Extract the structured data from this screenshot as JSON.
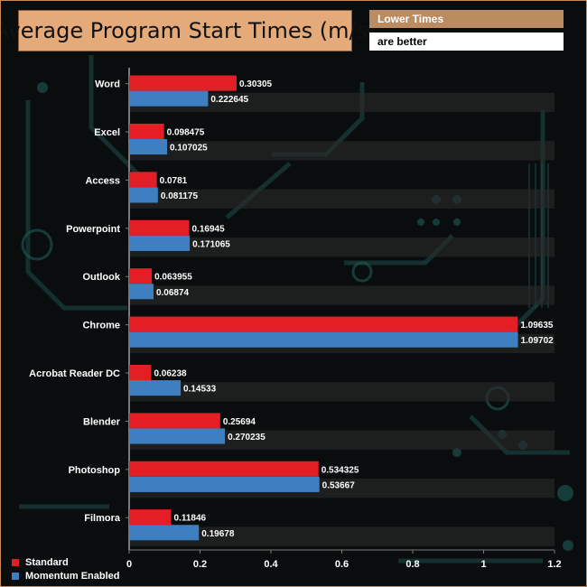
{
  "title": "Average Program Start Times (m/s)",
  "note": {
    "line1": "Lower Times",
    "line2": "are better"
  },
  "colors": {
    "standard": "#e31e24",
    "momentum": "#3d7fc1",
    "title_bg": "#e4aa7a",
    "note_bg": "#ba8c60"
  },
  "chart_data": {
    "type": "bar",
    "orientation": "horizontal",
    "categories": [
      "Word",
      "Excel",
      "Access",
      "Powerpoint",
      "Outlook",
      "Chrome",
      "Acrobat Reader DC",
      "Blender",
      "Photoshop",
      "Filmora"
    ],
    "series": [
      {
        "name": "Standard",
        "color": "#e31e24",
        "values": [
          0.30305,
          0.098475,
          0.0781,
          0.16945,
          0.063955,
          1.09635,
          0.06238,
          0.25694,
          0.534325,
          0.11846
        ]
      },
      {
        "name": "Momentum Enabled",
        "color": "#3d7fc1",
        "values": [
          0.222645,
          0.107025,
          0.081175,
          0.171065,
          0.06874,
          1.09702,
          0.14533,
          0.270235,
          0.53667,
          0.19678
        ]
      }
    ],
    "value_labels": [
      [
        "0.30305",
        "0.098475",
        "0.0781",
        "0.16945",
        "0.063955",
        "1.09635",
        "0.06238",
        "0.25694",
        "0.534325",
        "0.11846"
      ],
      [
        "0.222645",
        "0.107025",
        "0.081175",
        "0.171065",
        "0.06874",
        "1.09702",
        "0.14533",
        "0.270235",
        "0.53667",
        "0.19678"
      ]
    ],
    "x_ticks": [
      "0",
      "0.2",
      "0.4",
      "0.6",
      "0.8",
      "1",
      "1.2"
    ],
    "xlim": [
      0,
      1.2
    ],
    "legend_position": "bottom-left"
  }
}
